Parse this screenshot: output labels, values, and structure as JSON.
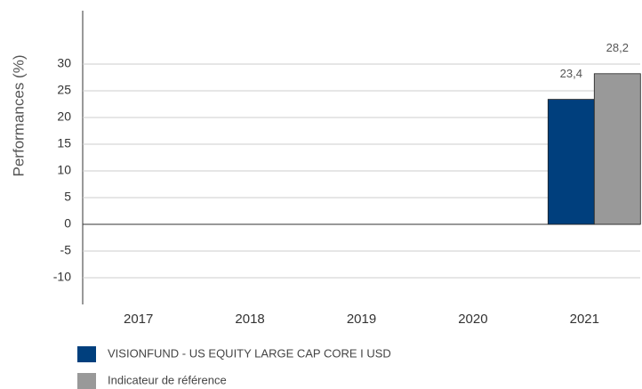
{
  "chart_data": {
    "type": "bar",
    "y_label": "Performances (%)",
    "categories": [
      "2017",
      "2018",
      "2019",
      "2020",
      "2021"
    ],
    "series": [
      {
        "name": "VISIONFUND - US EQUITY LARGE CAP CORE I USD",
        "color": "#003f7d",
        "values": [
          null,
          null,
          null,
          null,
          23.4
        ],
        "value_labels": [
          null,
          null,
          null,
          null,
          "23,4"
        ]
      },
      {
        "name": "Indicateur de référence",
        "color": "#999999",
        "values": [
          null,
          null,
          null,
          null,
          28.2
        ],
        "value_labels": [
          null,
          null,
          null,
          null,
          "28,2"
        ]
      }
    ],
    "ylim": [
      -15,
      40
    ],
    "yticks": [
      -10,
      -5,
      0,
      5,
      10,
      15,
      20,
      25,
      30
    ],
    "grid": true
  }
}
